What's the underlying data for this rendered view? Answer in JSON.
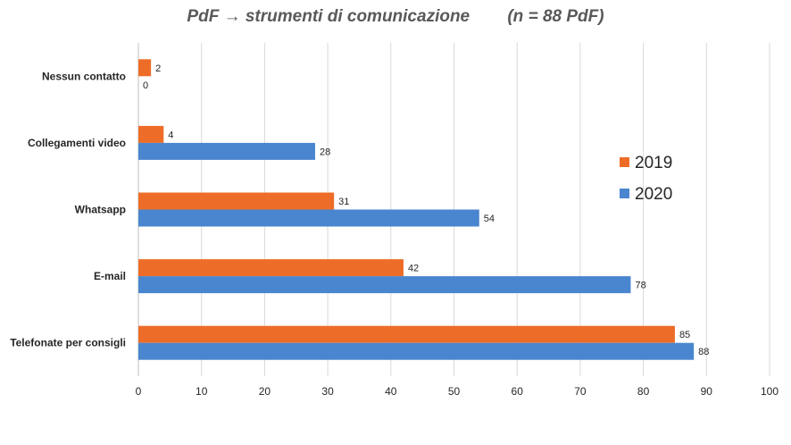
{
  "chart_data": {
    "type": "bar",
    "orientation": "horizontal",
    "title": "PdF → strumenti di comunicazione        (n = 88 PdF)",
    "categories": [
      "Nessun contatto",
      "Collegamenti video",
      "Whatsapp",
      "E-mail",
      "Telefonate per consigli"
    ],
    "series": [
      {
        "name": "2019",
        "values": [
          2,
          4,
          31,
          42,
          85
        ]
      },
      {
        "name": "2020",
        "values": [
          0,
          28,
          54,
          78,
          88
        ]
      }
    ],
    "xlim": [
      0,
      100
    ],
    "xticks": [
      0,
      10,
      20,
      30,
      40,
      50,
      60,
      70,
      80,
      90,
      100
    ],
    "grid": true,
    "legend_position": "right"
  },
  "colors": {
    "series_2019": "#ED6D28",
    "series_2020": "#4A86CF",
    "grid": "#D9D9D9",
    "axis": "#BFBFBF",
    "text": "#262626",
    "title": "#595959"
  }
}
